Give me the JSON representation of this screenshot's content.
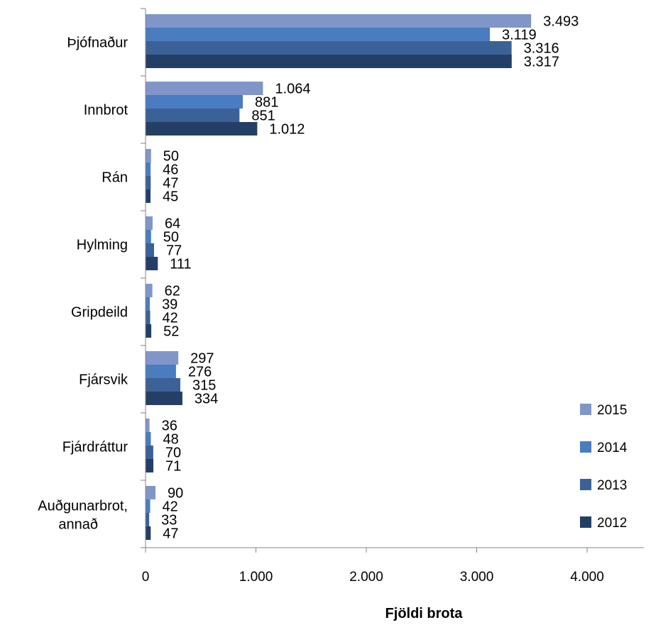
{
  "chart_data": {
    "type": "bar",
    "orientation": "horizontal",
    "title": "",
    "xlabel": "Fjöldi brota",
    "ylabel": "",
    "xlim": [
      0,
      4000
    ],
    "xticks": [
      0,
      1000,
      2000,
      3000,
      4000
    ],
    "xtick_labels": [
      "0",
      "1.000",
      "2.000",
      "3.000",
      "4.000"
    ],
    "categories": [
      "Þjófnaður",
      "Innbrot",
      "Rán",
      "Hylming",
      "Gripdeild",
      "Fjársvik",
      "Fjárdráttur",
      "Auðgunarbrot, annað"
    ],
    "series": [
      {
        "name": "2015",
        "color": "#8096c9",
        "values": [
          3493,
          1064,
          50,
          64,
          62,
          297,
          36,
          90
        ],
        "labels": [
          "3.493",
          "1.064",
          "50",
          "64",
          "62",
          "297",
          "36",
          "90"
        ]
      },
      {
        "name": "2014",
        "color": "#4a7cc0",
        "values": [
          3119,
          881,
          46,
          50,
          39,
          276,
          48,
          42
        ],
        "labels": [
          "3.119",
          "881",
          "46",
          "50",
          "39",
          "276",
          "48",
          "42"
        ]
      },
      {
        "name": "2013",
        "color": "#3b6296",
        "values": [
          3316,
          851,
          47,
          77,
          42,
          315,
          70,
          33
        ],
        "labels": [
          "3.316",
          "851",
          "47",
          "77",
          "42",
          "315",
          "70",
          "33"
        ]
      },
      {
        "name": "2012",
        "color": "#243f66",
        "values": [
          3317,
          1012,
          45,
          111,
          52,
          334,
          71,
          47
        ],
        "labels": [
          "3.317",
          "1.012",
          "45",
          "111",
          "52",
          "334",
          "71",
          "47"
        ]
      }
    ],
    "legend_position": "right",
    "grid": false
  }
}
